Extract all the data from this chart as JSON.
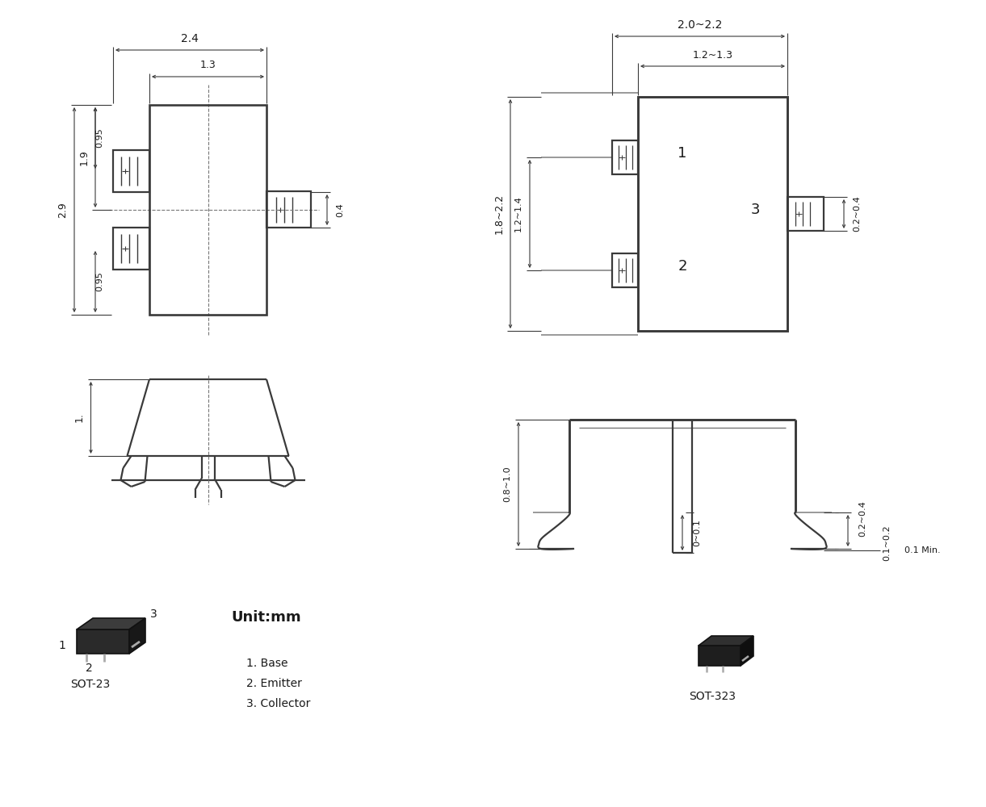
{
  "bg_color": "#ffffff",
  "line_color": "#3a3a3a",
  "dim_color": "#3a3a3a",
  "text_color": "#1a1a1a",
  "gray_color": "#888888",
  "font_size_dim": 9,
  "unit_text": "Unit:mm",
  "pin_labels": [
    "1. Base",
    "2. Emitter",
    "3. Collector"
  ],
  "sot23_label": "SOT-23",
  "sot323_label": "SOT-323",
  "dims_left": {
    "width_outer": "2.4",
    "width_inner": "1.3",
    "height_total": "2.9",
    "height_upper": "1.9",
    "pin_spacing_top": "0.95",
    "pin_spacing_bot": "0.95",
    "right_pin_height": "0.4"
  },
  "dims_right_top": {
    "width_outer": "2.0~2.2",
    "width_inner": "1.2~1.3",
    "height_total": "1.8~2.2",
    "pin_spacing": "1.2~1.4",
    "right_pin_height": "0.2~0.4"
  },
  "dims_right_bot": {
    "height_total": "0.8~1.0",
    "center_pin": "0~0.1",
    "right_pin_w": "0.1~0.2",
    "min_label": "0.1 Min."
  },
  "dim_bottom_left": "1."
}
